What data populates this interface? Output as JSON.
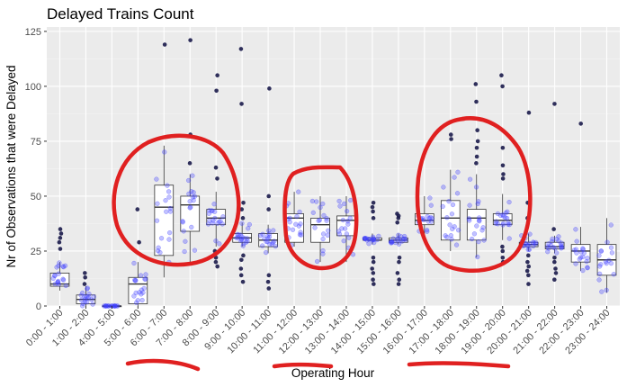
{
  "chart_data": {
    "type": "box",
    "title": "Delayed Trains Count",
    "xlabel": "Operating Hour",
    "ylabel": "Nr of Observations that were Delayed",
    "ylim": [
      0,
      127
    ],
    "yticks": [
      0,
      25,
      50,
      75,
      100,
      125
    ],
    "categories": [
      "0:00 - 1:00",
      "1:00 - 2:00",
      "4:00 - 5:00",
      "5:00 - 6:00",
      "6:00 - 7:00",
      "7:00 - 8:00",
      "8:00 - 9:00",
      "9:00 - 10:00",
      "10:00 - 11:00",
      "11:00 - 12:00",
      "12:00 - 13:00",
      "13:00 - 14:00",
      "14:00 - 15:00",
      "15:00 - 16:00",
      "16:00 - 17:00",
      "17:00 - 18:00",
      "18:00 - 19:00",
      "19:00 - 20:00",
      "20:00 - 21:00",
      "21:00 - 22:00",
      "22:00 - 23:00",
      "23:00 - 24:00"
    ],
    "boxes": [
      {
        "min": 7,
        "q1": 9,
        "median": 10,
        "q3": 15,
        "max": 20
      },
      {
        "min": 0,
        "q1": 1,
        "median": 3,
        "q3": 5,
        "max": 9
      },
      {
        "min": 0,
        "q1": 0,
        "median": 0,
        "q3": 0,
        "max": 0
      },
      {
        "min": 0,
        "q1": 1,
        "median": 10,
        "q3": 13,
        "max": 20
      },
      {
        "min": 13,
        "q1": 23,
        "median": 45,
        "q3": 55,
        "max": 73
      },
      {
        "min": 20,
        "q1": 34,
        "median": 46,
        "q3": 50,
        "max": 60
      },
      {
        "min": 27,
        "q1": 37,
        "median": 40,
        "q3": 44,
        "max": 52
      },
      {
        "min": 27,
        "q1": 29,
        "median": 31,
        "q3": 33,
        "max": 38
      },
      {
        "min": 24,
        "q1": 27,
        "median": 30,
        "q3": 33,
        "max": 37
      },
      {
        "min": 27,
        "q1": 29,
        "median": 40,
        "q3": 42,
        "max": 52
      },
      {
        "min": 20,
        "q1": 29,
        "median": 37,
        "q3": 40,
        "max": 50
      },
      {
        "min": 20,
        "q1": 32,
        "median": 39,
        "q3": 41,
        "max": 50
      },
      {
        "min": 28,
        "q1": 30,
        "median": 30,
        "q3": 31,
        "max": 33
      },
      {
        "min": 28,
        "q1": 29,
        "median": 30,
        "q3": 31,
        "max": 33
      },
      {
        "min": 30,
        "q1": 37,
        "median": 39,
        "q3": 42,
        "max": 50
      },
      {
        "min": 25,
        "q1": 30,
        "median": 40,
        "q3": 48,
        "max": 62
      },
      {
        "min": 22,
        "q1": 30,
        "median": 40,
        "q3": 44,
        "max": 60
      },
      {
        "min": 30,
        "q1": 37,
        "median": 39,
        "q3": 42,
        "max": 51
      },
      {
        "min": 25,
        "q1": 27,
        "median": 28,
        "q3": 29,
        "max": 33
      },
      {
        "min": 24,
        "q1": 26,
        "median": 27,
        "q3": 29,
        "max": 32
      },
      {
        "min": 16,
        "q1": 20,
        "median": 25,
        "q3": 28,
        "max": 36
      },
      {
        "min": 6,
        "q1": 14,
        "median": 21,
        "q3": 28,
        "max": 40
      }
    ],
    "outliers": [
      [
        26,
        29,
        31,
        33,
        35
      ],
      [
        10,
        13,
        15
      ],
      [],
      [
        29,
        44
      ],
      [
        119
      ],
      [
        65,
        78,
        121
      ],
      [
        18,
        20,
        22,
        25,
        58,
        63,
        98,
        105
      ],
      [
        11,
        14,
        17,
        21,
        23,
        40,
        44,
        47,
        92,
        117
      ],
      [
        8,
        11,
        14,
        44,
        50,
        99
      ],
      [],
      [],
      [],
      [
        10,
        12,
        15,
        17,
        20,
        22,
        40,
        43,
        45,
        47
      ],
      [
        10,
        12,
        15,
        20,
        22,
        38,
        40,
        41,
        42
      ],
      [],
      [
        76,
        78
      ],
      [
        65,
        68,
        72,
        75,
        80,
        93,
        101
      ],
      [
        20,
        22,
        25,
        27,
        58,
        60,
        64,
        72,
        100,
        105
      ],
      [
        10,
        14,
        16,
        18,
        20,
        23,
        40,
        47,
        88
      ],
      [
        12,
        15,
        17,
        20,
        22,
        35,
        92
      ],
      [
        83
      ],
      []
    ],
    "points_per_category": 18,
    "colors": {
      "panel": "#ebebeb",
      "grid_major": "#ffffff",
      "grid_minor": "#f4f4f4",
      "box_stroke": "#333333",
      "box_fill": "#ffffff",
      "jitter_point": "#4040ff",
      "outlier_point": "#1a1a4a",
      "annotation": "#e02020"
    }
  }
}
